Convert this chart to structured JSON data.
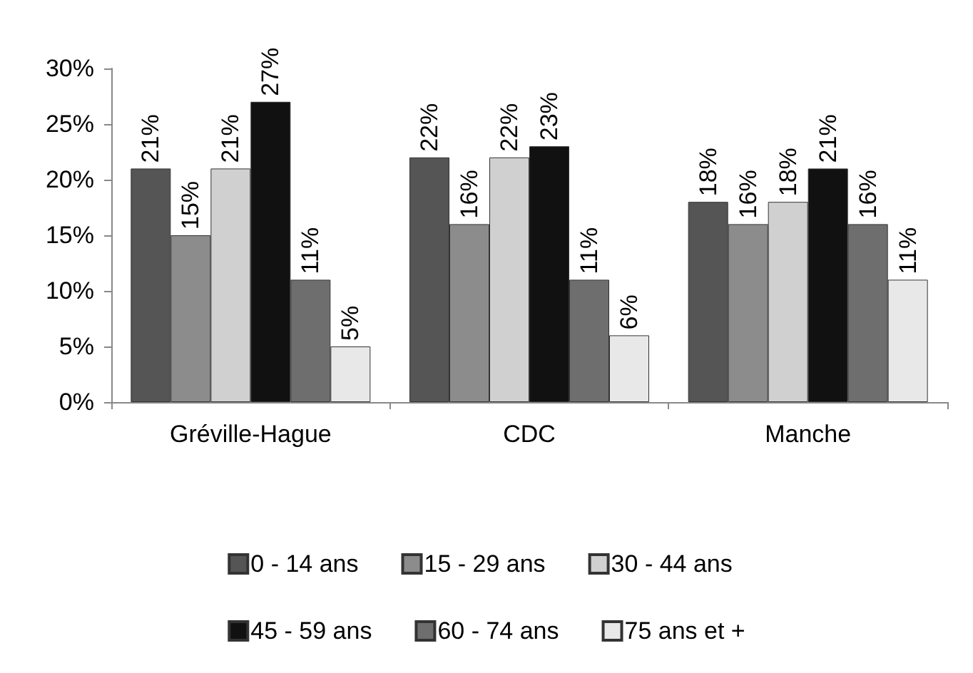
{
  "chart_data": {
    "type": "bar",
    "categories": [
      "Gréville-Hague",
      "CDC",
      "Manche"
    ],
    "series": [
      {
        "name": "0 - 14 ans",
        "color": "#555555",
        "values": [
          21,
          22,
          18
        ],
        "value_labels": [
          "21%",
          "22%",
          "18%"
        ]
      },
      {
        "name": "15 - 29 ans",
        "color": "#8c8c8c",
        "values": [
          15,
          16,
          16
        ],
        "value_labels": [
          "15%",
          "16%",
          "16%"
        ]
      },
      {
        "name": "30 - 44 ans",
        "color": "#d0d0d0",
        "values": [
          21,
          22,
          18
        ],
        "value_labels": [
          "21%",
          "22%",
          "18%"
        ]
      },
      {
        "name": "45 - 59 ans",
        "color": "#111111",
        "values": [
          27,
          23,
          21
        ],
        "value_labels": [
          "27%",
          "23%",
          "21%"
        ]
      },
      {
        "name": "60 - 74 ans",
        "color": "#6e6e6e",
        "values": [
          11,
          11,
          16
        ],
        "value_labels": [
          "11%",
          "11%",
          "16%"
        ]
      },
      {
        "name": "75 ans et +",
        "color": "#e8e8e8",
        "values": [
          5,
          6,
          11
        ],
        "value_labels": [
          "5%",
          "6%",
          "11%"
        ]
      }
    ],
    "ylim": [
      0,
      30
    ],
    "yticks": [
      {
        "value": 0,
        "label": "0%"
      },
      {
        "value": 5,
        "label": "5%"
      },
      {
        "value": 10,
        "label": "10%"
      },
      {
        "value": 15,
        "label": "15%"
      },
      {
        "value": 20,
        "label": "20%"
      },
      {
        "value": 25,
        "label": "25%"
      },
      {
        "value": 30,
        "label": "30%"
      }
    ],
    "grid": false,
    "legend": "bottom"
  }
}
